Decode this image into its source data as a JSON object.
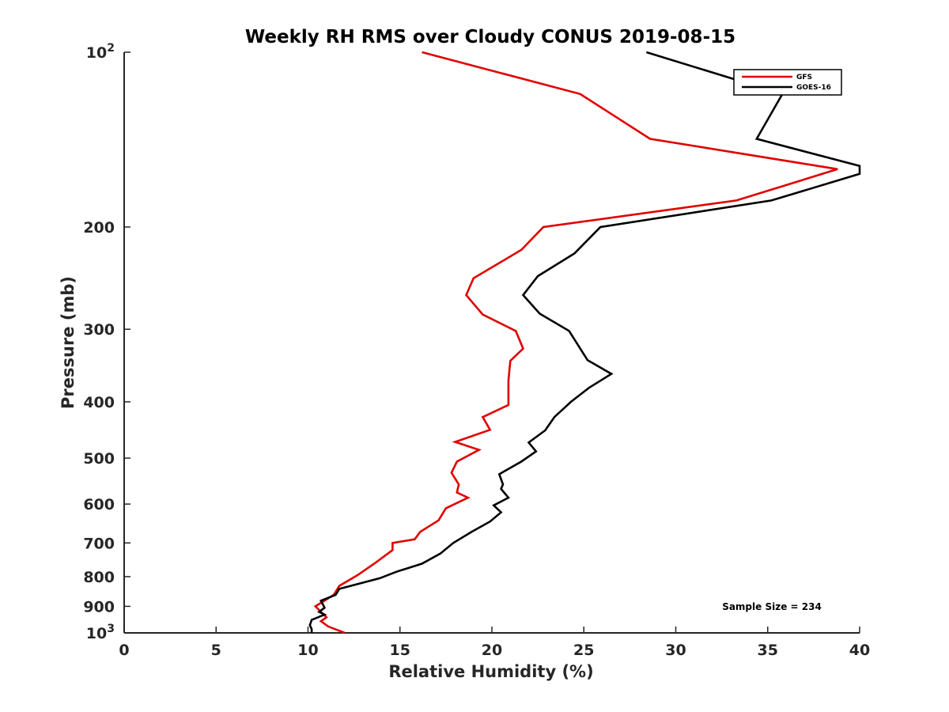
{
  "chart_data": {
    "type": "line",
    "title": "Weekly RH RMS over Cloudy CONUS 2019-08-15",
    "xlabel": "Relative Humidity (%)",
    "ylabel": "Pressure (mb)",
    "xlim": [
      0,
      40
    ],
    "ylim": [
      100,
      1000
    ],
    "y_scale": "log",
    "y_reversed": true,
    "grid": false,
    "legend_position": "top-right",
    "x_ticks": [
      0,
      5,
      10,
      15,
      20,
      25,
      30,
      35,
      40
    ],
    "y_ticks": [
      {
        "value": 100,
        "base": "10",
        "exp": "2"
      },
      {
        "value": 200,
        "label": "200"
      },
      {
        "value": 300,
        "label": "300"
      },
      {
        "value": 400,
        "label": "400"
      },
      {
        "value": 500,
        "label": "500"
      },
      {
        "value": 600,
        "label": "600"
      },
      {
        "value": 700,
        "label": "700"
      },
      {
        "value": 800,
        "label": "800"
      },
      {
        "value": 900,
        "label": "900"
      },
      {
        "value": 1000,
        "base": "10",
        "exp": "3"
      }
    ],
    "annotation": "Sample Size = 234",
    "series": [
      {
        "name": "GFS",
        "color": "#e00000",
        "points": [
          [
            16.2,
            100
          ],
          [
            24.8,
            118
          ],
          [
            28.6,
            141
          ],
          [
            38.8,
            159
          ],
          [
            33.3,
            180
          ],
          [
            22.8,
            200
          ],
          [
            21.6,
            219
          ],
          [
            19.0,
            245
          ],
          [
            18.6,
            262
          ],
          [
            19.5,
            283
          ],
          [
            21.3,
            302
          ],
          [
            21.7,
            324
          ],
          [
            21.0,
            340
          ],
          [
            20.9,
            368
          ],
          [
            20.9,
            405
          ],
          [
            19.5,
            425
          ],
          [
            19.9,
            447
          ],
          [
            18.0,
            469
          ],
          [
            19.3,
            484
          ],
          [
            18.1,
            507
          ],
          [
            17.8,
            530
          ],
          [
            18.2,
            555
          ],
          [
            18.1,
            573
          ],
          [
            18.7,
            585
          ],
          [
            17.5,
            610
          ],
          [
            17.1,
            640
          ],
          [
            16.1,
            670
          ],
          [
            15.8,
            690
          ],
          [
            14.6,
            700
          ],
          [
            14.6,
            720
          ],
          [
            13.6,
            760
          ],
          [
            12.7,
            795
          ],
          [
            11.7,
            830
          ],
          [
            11.4,
            860
          ],
          [
            10.4,
            900
          ],
          [
            11.0,
            940
          ],
          [
            10.7,
            955
          ],
          [
            11.1,
            975
          ],
          [
            12.0,
            1000
          ]
        ]
      },
      {
        "name": "GOES-16",
        "color": "#000000",
        "points": [
          [
            28.4,
            100
          ],
          [
            35.8,
            118
          ],
          [
            34.4,
            141
          ],
          [
            40.0,
            157
          ],
          [
            40.0,
            162
          ],
          [
            35.2,
            180
          ],
          [
            25.9,
            200
          ],
          [
            24.5,
            222
          ],
          [
            22.5,
            243
          ],
          [
            21.7,
            262
          ],
          [
            22.6,
            282
          ],
          [
            24.2,
            302
          ],
          [
            25.2,
            339
          ],
          [
            26.5,
            358
          ],
          [
            25.3,
            378
          ],
          [
            24.3,
            400
          ],
          [
            23.4,
            425
          ],
          [
            22.9,
            448
          ],
          [
            22.0,
            470
          ],
          [
            22.4,
            487
          ],
          [
            21.6,
            507
          ],
          [
            20.4,
            533
          ],
          [
            20.6,
            555
          ],
          [
            20.5,
            565
          ],
          [
            20.9,
            585
          ],
          [
            20.1,
            603
          ],
          [
            20.5,
            620
          ],
          [
            19.9,
            643
          ],
          [
            18.9,
            670
          ],
          [
            17.9,
            700
          ],
          [
            17.2,
            730
          ],
          [
            16.2,
            760
          ],
          [
            14.8,
            785
          ],
          [
            13.9,
            805
          ],
          [
            11.7,
            840
          ],
          [
            11.5,
            860
          ],
          [
            10.7,
            880
          ],
          [
            10.9,
            905
          ],
          [
            10.6,
            920
          ],
          [
            10.9,
            930
          ],
          [
            10.2,
            950
          ],
          [
            10.1,
            970
          ],
          [
            10.2,
            985
          ],
          [
            10.2,
            1000
          ]
        ]
      }
    ]
  }
}
